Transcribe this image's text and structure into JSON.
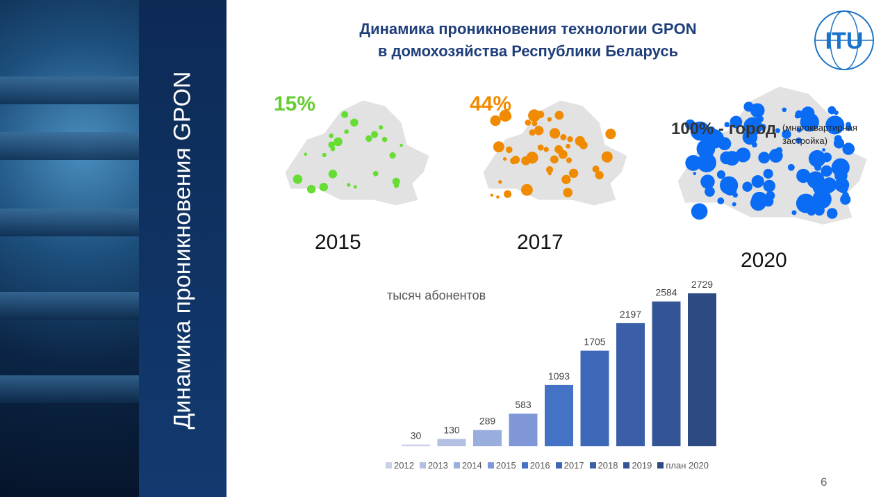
{
  "side_title": "Динамика проникновения GPON",
  "title_line1": "Динамика проникновения технологии GPON",
  "title_line2": "в домохозяйства Республики Беларусь",
  "logo_text": "ITU",
  "maps": [
    {
      "year": "2015",
      "percent": "15%",
      "color": "#66dd33"
    },
    {
      "year": "2017",
      "percent": "44%",
      "color": "#f08a00"
    },
    {
      "year": "2020",
      "percent": "100% - город",
      "note": "(многоквартирная застройка)",
      "color": "#0a6cf5"
    }
  ],
  "chart_data": {
    "type": "bar",
    "ylabel": "тысяч абонентов",
    "categories": [
      "2012",
      "2013",
      "2014",
      "2015",
      "2016",
      "2017",
      "2018",
      "2019",
      "план 2020"
    ],
    "values": [
      30,
      130,
      289,
      583,
      1093,
      1705,
      2197,
      2584,
      2729
    ],
    "colors": [
      "#c9d0e8",
      "#b3c0e3",
      "#9aaede",
      "#7f97d6",
      "#4472c4",
      "#3d68b8",
      "#3a5fa8",
      "#335595",
      "#2e4a82"
    ],
    "legend": "bottom"
  },
  "page_number": "6"
}
